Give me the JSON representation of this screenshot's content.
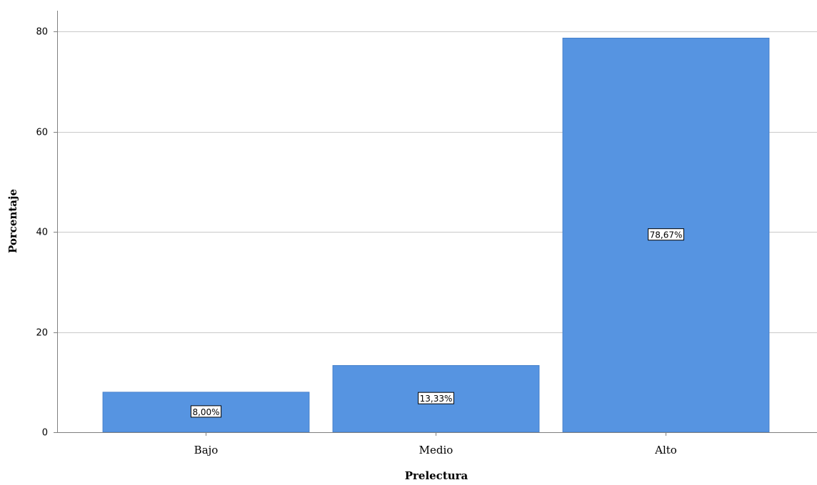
{
  "chart_data": {
    "type": "bar",
    "categories": [
      "Bajo",
      "Medio",
      "Alto"
    ],
    "values": [
      8.0,
      13.33,
      78.67
    ],
    "data_labels": [
      "8,00%",
      "13,33%",
      "78,67%"
    ],
    "title": "",
    "xlabel": "Prelectura",
    "ylabel": "Porcentaje",
    "ylim": [
      0,
      80
    ],
    "yticks": [
      0,
      20,
      40,
      60,
      80
    ],
    "grid": true,
    "bar_color": "#5694e1",
    "bar_edge_color": "#3f79c4",
    "gridline_color": "#c9c9c9",
    "axis_color": "#7f7f7f"
  }
}
